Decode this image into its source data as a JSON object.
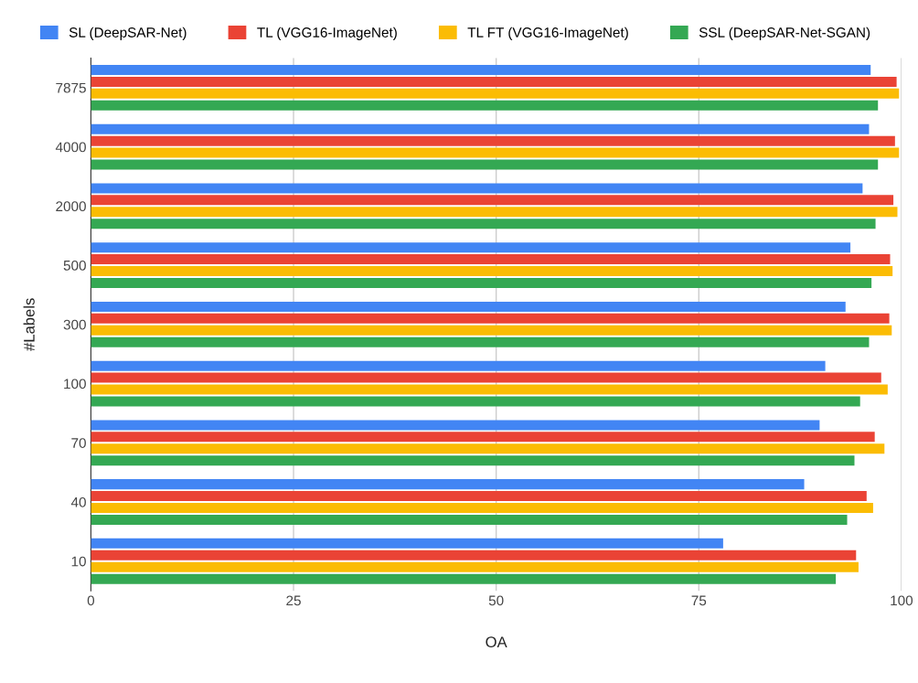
{
  "chart_data": {
    "type": "bar",
    "orientation": "horizontal",
    "xlabel": "OA",
    "ylabel": "#Labels",
    "categories": [
      "7875",
      "4000",
      "2000",
      "500",
      "300",
      "100",
      "70",
      "40",
      "10"
    ],
    "series": [
      {
        "name": "SL (DeepSAR-Net)",
        "color": "#4285f4",
        "values": [
          96.2,
          96.0,
          95.2,
          93.7,
          93.1,
          90.6,
          89.9,
          88.0,
          78.0
        ]
      },
      {
        "name": "TL (VGG16-ImageNet)",
        "color": "#ea4335",
        "values": [
          99.4,
          99.2,
          99.0,
          98.6,
          98.5,
          97.5,
          96.7,
          95.7,
          94.4
        ]
      },
      {
        "name": "TL FT (VGG16-ImageNet)",
        "color": "#fbbc04",
        "values": [
          99.7,
          99.7,
          99.5,
          98.9,
          98.8,
          98.3,
          97.9,
          96.5,
          94.7
        ]
      },
      {
        "name": "SSL (DeepSAR-Net-SGAN)",
        "color": "#34a853",
        "values": [
          97.1,
          97.1,
          96.8,
          96.3,
          96.0,
          94.9,
          94.2,
          93.3,
          91.9
        ]
      }
    ],
    "xlim": [
      0,
      100
    ],
    "xticks": [
      0,
      25,
      50,
      75,
      100
    ],
    "grid": "x",
    "legend": "top"
  }
}
